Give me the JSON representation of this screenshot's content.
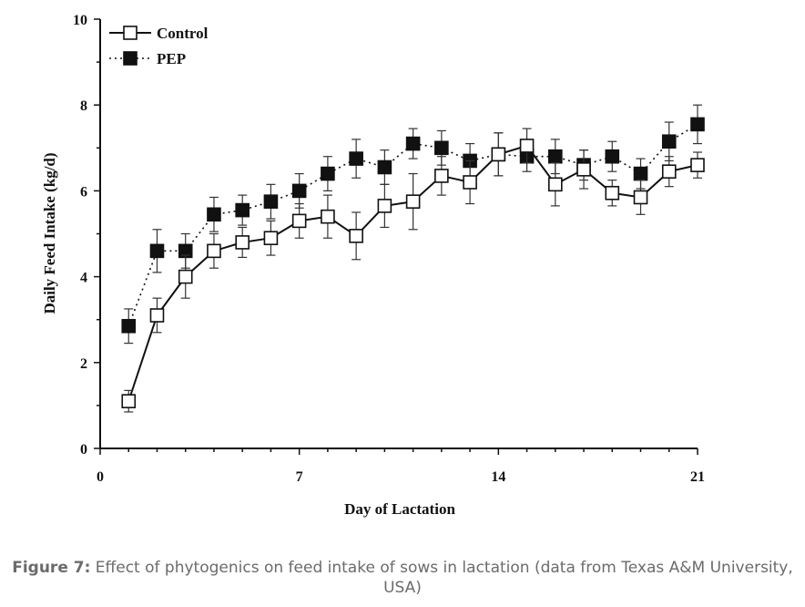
{
  "chart_data": {
    "type": "line",
    "xlabel": "Day of Lactation",
    "ylabel": "Daily Feed Intake (kg/d)",
    "xlim": [
      0,
      21
    ],
    "ylim": [
      0,
      10
    ],
    "x_ticks": [
      "0",
      "7",
      "14",
      "21"
    ],
    "y_ticks": [
      "0",
      "2",
      "4",
      "6",
      "8",
      "10"
    ],
    "x": [
      1,
      2,
      3,
      4,
      5,
      6,
      7,
      8,
      9,
      10,
      11,
      12,
      13,
      14,
      15,
      16,
      17,
      18,
      19,
      20,
      21
    ],
    "series": [
      {
        "name": "Control",
        "marker": "open-square",
        "line": "solid",
        "values": [
          1.1,
          3.1,
          4.0,
          4.6,
          4.8,
          4.9,
          5.3,
          5.4,
          4.95,
          5.65,
          5.75,
          6.35,
          6.2,
          6.85,
          7.05,
          6.15,
          6.5,
          5.95,
          5.85,
          6.45,
          6.6
        ],
        "error": [
          0.25,
          0.4,
          0.5,
          0.4,
          0.35,
          0.4,
          0.4,
          0.5,
          0.55,
          0.5,
          0.65,
          0.45,
          0.5,
          0.5,
          0.4,
          0.5,
          0.45,
          0.3,
          0.4,
          0.35,
          0.3
        ]
      },
      {
        "name": "PEP",
        "marker": "filled-square",
        "line": "dotted",
        "values": [
          2.85,
          4.6,
          4.6,
          5.45,
          5.55,
          5.75,
          6.0,
          6.4,
          6.75,
          6.55,
          7.1,
          7.0,
          6.7,
          6.85,
          6.8,
          6.8,
          6.6,
          6.8,
          6.4,
          7.15,
          7.55
        ],
        "error": [
          0.4,
          0.5,
          0.4,
          0.4,
          0.35,
          0.4,
          0.4,
          0.4,
          0.45,
          0.4,
          0.35,
          0.4,
          0.4,
          0.5,
          0.35,
          0.4,
          0.35,
          0.35,
          0.35,
          0.45,
          0.45
        ]
      }
    ],
    "legend_position": "top-left",
    "grid": false
  },
  "caption": {
    "label": "Figure 7:",
    "text": " Effect of phytogenics on feed intake of sows in lactation (data from Texas A&M University, USA)"
  }
}
